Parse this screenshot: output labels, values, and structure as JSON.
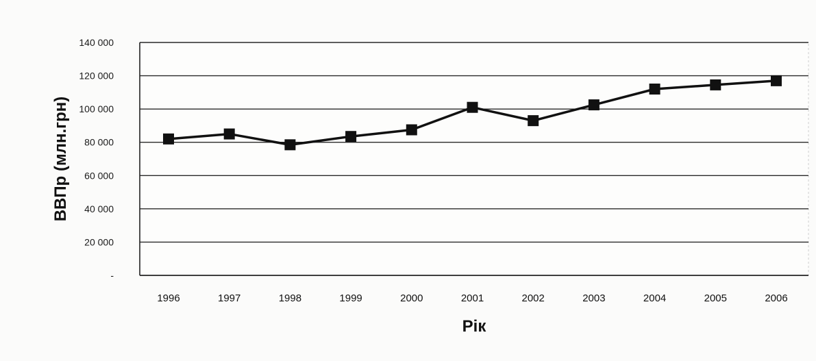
{
  "chart_data": {
    "type": "line",
    "title": "",
    "xlabel": "Рік",
    "ylabel": "ВВПр (млн.грн)",
    "categories": [
      "1996",
      "1997",
      "1998",
      "1999",
      "2000",
      "2001",
      "2002",
      "2003",
      "2004",
      "2005",
      "2006"
    ],
    "series": [
      {
        "values": [
          82000,
          85000,
          78500,
          83500,
          87500,
          101000,
          93000,
          102500,
          112000,
          114500,
          117000
        ]
      }
    ],
    "ylim": [
      0,
      140000
    ],
    "yticks": [
      0,
      20000,
      40000,
      60000,
      80000,
      100000,
      120000,
      140000
    ],
    "ytick_labels": [
      "-",
      "20 000",
      "40 000",
      "60 000",
      "80 000",
      "100 000",
      "120 000",
      "140 000"
    ],
    "grid": true,
    "legend": "none",
    "colors": {
      "line": "#111111",
      "marker": "#111111",
      "grid": "#2a2a2a",
      "text": "#111111"
    },
    "marker": "square"
  }
}
